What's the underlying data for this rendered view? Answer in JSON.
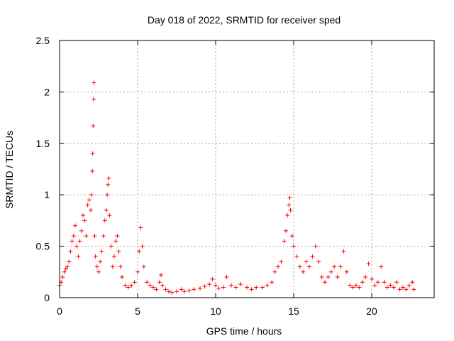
{
  "chart_data": {
    "type": "scatter",
    "title": "Day 018 of 2022, SRMTID for receiver sped",
    "xlabel": "GPS time / hours",
    "ylabel": "SRMTID / TECUs",
    "xlim": [
      0,
      24
    ],
    "ylim": [
      0,
      2.5
    ],
    "xticks": [
      0,
      5,
      10,
      15,
      20
    ],
    "yticks": [
      0,
      0.5,
      1,
      1.5,
      2,
      2.5
    ],
    "xtick_labels": [
      "0",
      "5",
      "10",
      "15",
      "20"
    ],
    "ytick_labels": [
      "0",
      "0.5",
      "1",
      "1.5",
      "2",
      "2.5"
    ],
    "grid": true,
    "marker": "+",
    "series": [
      {
        "name": "SRMTID",
        "color": "#ff0000",
        "points": [
          [
            0.0,
            0.12
          ],
          [
            0.1,
            0.15
          ],
          [
            0.2,
            0.2
          ],
          [
            0.3,
            0.25
          ],
          [
            0.4,
            0.28
          ],
          [
            0.5,
            0.3
          ],
          [
            0.6,
            0.35
          ],
          [
            0.7,
            0.45
          ],
          [
            0.8,
            0.55
          ],
          [
            0.9,
            0.6
          ],
          [
            1.0,
            0.7
          ],
          [
            1.1,
            0.5
          ],
          [
            1.2,
            0.4
          ],
          [
            1.3,
            0.55
          ],
          [
            1.4,
            0.65
          ],
          [
            1.5,
            0.8
          ],
          [
            1.6,
            0.75
          ],
          [
            1.7,
            0.6
          ],
          [
            1.8,
            0.9
          ],
          [
            1.9,
            0.95
          ],
          [
            2.0,
            0.85
          ],
          [
            2.05,
            1.0
          ],
          [
            2.1,
            1.23
          ],
          [
            2.12,
            1.4
          ],
          [
            2.15,
            1.67
          ],
          [
            2.18,
            1.93
          ],
          [
            2.2,
            2.09
          ],
          [
            2.25,
            0.6
          ],
          [
            2.3,
            0.4
          ],
          [
            2.4,
            0.3
          ],
          [
            2.5,
            0.25
          ],
          [
            2.6,
            0.35
          ],
          [
            2.7,
            0.45
          ],
          [
            2.8,
            0.6
          ],
          [
            2.9,
            0.75
          ],
          [
            3.0,
            0.85
          ],
          [
            3.05,
            1.0
          ],
          [
            3.1,
            1.1
          ],
          [
            3.15,
            1.16
          ],
          [
            3.2,
            0.8
          ],
          [
            3.3,
            0.5
          ],
          [
            3.4,
            0.3
          ],
          [
            3.5,
            0.4
          ],
          [
            3.6,
            0.55
          ],
          [
            3.7,
            0.6
          ],
          [
            3.8,
            0.45
          ],
          [
            3.9,
            0.3
          ],
          [
            4.0,
            0.2
          ],
          [
            4.2,
            0.12
          ],
          [
            4.4,
            0.1
          ],
          [
            4.6,
            0.12
          ],
          [
            4.8,
            0.15
          ],
          [
            5.0,
            0.25
          ],
          [
            5.1,
            0.45
          ],
          [
            5.2,
            0.68
          ],
          [
            5.3,
            0.5
          ],
          [
            5.4,
            0.3
          ],
          [
            5.6,
            0.15
          ],
          [
            5.8,
            0.12
          ],
          [
            6.0,
            0.1
          ],
          [
            6.2,
            0.08
          ],
          [
            6.4,
            0.15
          ],
          [
            6.5,
            0.22
          ],
          [
            6.6,
            0.12
          ],
          [
            6.8,
            0.08
          ],
          [
            7.0,
            0.06
          ],
          [
            7.2,
            0.05
          ],
          [
            7.5,
            0.06
          ],
          [
            7.8,
            0.08
          ],
          [
            8.0,
            0.06
          ],
          [
            8.3,
            0.07
          ],
          [
            8.6,
            0.08
          ],
          [
            9.0,
            0.09
          ],
          [
            9.3,
            0.11
          ],
          [
            9.6,
            0.13
          ],
          [
            9.8,
            0.18
          ],
          [
            10.0,
            0.12
          ],
          [
            10.2,
            0.09
          ],
          [
            10.5,
            0.1
          ],
          [
            10.7,
            0.2
          ],
          [
            11.0,
            0.12
          ],
          [
            11.3,
            0.1
          ],
          [
            11.6,
            0.13
          ],
          [
            12.0,
            0.1
          ],
          [
            12.3,
            0.08
          ],
          [
            12.6,
            0.1
          ],
          [
            13.0,
            0.1
          ],
          [
            13.3,
            0.12
          ],
          [
            13.6,
            0.15
          ],
          [
            13.8,
            0.25
          ],
          [
            14.0,
            0.3
          ],
          [
            14.2,
            0.35
          ],
          [
            14.4,
            0.55
          ],
          [
            14.5,
            0.65
          ],
          [
            14.6,
            0.8
          ],
          [
            14.7,
            0.9
          ],
          [
            14.75,
            0.97
          ],
          [
            14.8,
            0.85
          ],
          [
            14.9,
            0.6
          ],
          [
            15.0,
            0.5
          ],
          [
            15.2,
            0.4
          ],
          [
            15.4,
            0.3
          ],
          [
            15.6,
            0.25
          ],
          [
            15.8,
            0.35
          ],
          [
            16.0,
            0.3
          ],
          [
            16.2,
            0.4
          ],
          [
            16.4,
            0.5
          ],
          [
            16.6,
            0.35
          ],
          [
            16.8,
            0.2
          ],
          [
            17.0,
            0.15
          ],
          [
            17.2,
            0.2
          ],
          [
            17.4,
            0.25
          ],
          [
            17.6,
            0.3
          ],
          [
            17.8,
            0.2
          ],
          [
            18.0,
            0.3
          ],
          [
            18.2,
            0.45
          ],
          [
            18.4,
            0.25
          ],
          [
            18.6,
            0.12
          ],
          [
            18.8,
            0.1
          ],
          [
            19.0,
            0.12
          ],
          [
            19.2,
            0.1
          ],
          [
            19.4,
            0.15
          ],
          [
            19.6,
            0.2
          ],
          [
            19.8,
            0.33
          ],
          [
            20.0,
            0.18
          ],
          [
            20.2,
            0.12
          ],
          [
            20.4,
            0.15
          ],
          [
            20.6,
            0.3
          ],
          [
            20.8,
            0.15
          ],
          [
            21.0,
            0.1
          ],
          [
            21.2,
            0.12
          ],
          [
            21.4,
            0.1
          ],
          [
            21.6,
            0.15
          ],
          [
            21.8,
            0.08
          ],
          [
            22.0,
            0.1
          ],
          [
            22.2,
            0.08
          ],
          [
            22.4,
            0.12
          ],
          [
            22.6,
            0.15
          ],
          [
            22.7,
            0.08
          ]
        ]
      }
    ]
  }
}
